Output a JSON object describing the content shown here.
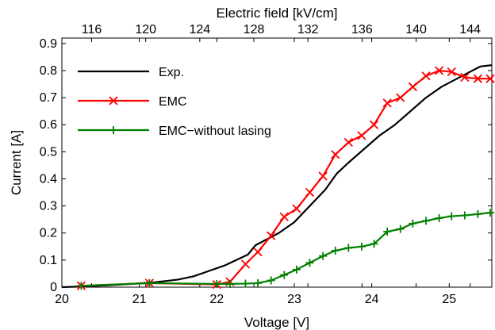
{
  "chart_data": {
    "type": "line",
    "title": "",
    "xlabel": "Voltage [V]",
    "ylabel": "Current [A]",
    "x2label": "Electric field [kV/cm]",
    "xlim": [
      20,
      25.55
    ],
    "ylim": [
      0,
      0.92
    ],
    "x2lim": [
      113.8,
      145.6
    ],
    "xticks": [
      20,
      21,
      22,
      23,
      24,
      25
    ],
    "yticks": [
      0,
      0.1,
      0.2,
      0.3,
      0.4,
      0.5,
      0.6,
      0.7,
      0.8,
      0.9
    ],
    "x2ticks": [
      116,
      120,
      124,
      128,
      132,
      136,
      140,
      144
    ],
    "grid": false,
    "legend_position": "top-left",
    "series": [
      {
        "name": "Exp.",
        "color": "#000000",
        "marker": "none",
        "x": [
          20.0,
          20.3,
          20.6,
          20.9,
          21.2,
          21.5,
          21.7,
          21.9,
          22.1,
          22.25,
          22.4,
          22.5,
          22.6,
          22.8,
          23.0,
          23.2,
          23.4,
          23.55,
          23.7,
          23.9,
          24.1,
          24.3,
          24.5,
          24.7,
          24.9,
          25.1,
          25.3,
          25.4,
          25.55
        ],
        "y": [
          0.0,
          0.003,
          0.007,
          0.012,
          0.018,
          0.028,
          0.04,
          0.06,
          0.08,
          0.1,
          0.12,
          0.155,
          0.17,
          0.2,
          0.24,
          0.3,
          0.36,
          0.42,
          0.46,
          0.51,
          0.56,
          0.6,
          0.65,
          0.7,
          0.74,
          0.77,
          0.8,
          0.815,
          0.82
        ]
      },
      {
        "name": "EMC",
        "color": "#ff0000",
        "marker": "x",
        "x": [
          20.25,
          21.13,
          22.0,
          22.17,
          22.37,
          22.53,
          22.7,
          22.87,
          23.03,
          23.2,
          23.37,
          23.53,
          23.7,
          23.87,
          24.03,
          24.2,
          24.37,
          24.53,
          24.7,
          24.87,
          25.03,
          25.2,
          25.37,
          25.53
        ],
        "y": [
          0.005,
          0.015,
          0.01,
          0.02,
          0.085,
          0.13,
          0.19,
          0.26,
          0.29,
          0.35,
          0.41,
          0.49,
          0.535,
          0.56,
          0.6,
          0.68,
          0.7,
          0.74,
          0.78,
          0.8,
          0.795,
          0.775,
          0.77,
          0.77
        ]
      },
      {
        "name": "EMC−without lasing",
        "color": "#008000",
        "marker": "+",
        "x": [
          20.25,
          21.13,
          22.0,
          22.17,
          22.37,
          22.53,
          22.7,
          22.87,
          23.03,
          23.2,
          23.37,
          23.53,
          23.7,
          23.87,
          24.03,
          24.2,
          24.37,
          24.53,
          24.7,
          24.87,
          25.03,
          25.2,
          25.37,
          25.53
        ],
        "y": [
          0.005,
          0.015,
          0.012,
          0.012,
          0.013,
          0.015,
          0.025,
          0.045,
          0.065,
          0.09,
          0.115,
          0.135,
          0.145,
          0.15,
          0.16,
          0.205,
          0.215,
          0.235,
          0.245,
          0.255,
          0.262,
          0.265,
          0.27,
          0.275
        ]
      }
    ]
  }
}
